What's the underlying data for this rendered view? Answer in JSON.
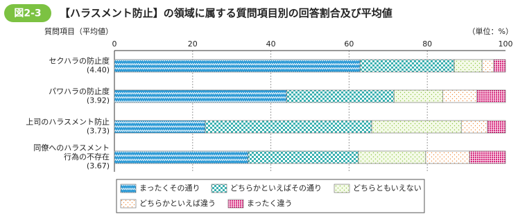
{
  "chart_data": {
    "type": "stacked-bar-horizontal",
    "figure_number": "図2-3",
    "title": "【ハラスメント防止】の領域に属する質問項目別の回答割合及び平均値",
    "y_axis_label": "質問項目（平均値）",
    "unit_label": "（単位：%）",
    "categories": [
      [
        "セクハラの防止度"
      ],
      [
        "パワハラの防止度"
      ],
      [
        "上司のハラスメント防止"
      ],
      [
        "同僚へのハラスメント",
        "行為の不存在"
      ]
    ],
    "averages": [
      "(4.40)",
      "(3.92)",
      "(3.73)",
      "(3.67)"
    ],
    "xlim": [
      0,
      100
    ],
    "xticks": [
      0,
      20,
      40,
      60,
      80,
      100
    ],
    "grid": true,
    "series": [
      {
        "name": "まったくその通り",
        "color": "#2e9bd6",
        "values": [
          62.8,
          44.0,
          23.2,
          34.2
        ]
      },
      {
        "name": "どちらかといえばその通り",
        "color": "#3ab0b0",
        "values": [
          24.1,
          27.5,
          42.6,
          28.2
        ]
      },
      {
        "name": "どちらともいえない",
        "color": "#8cc63f",
        "values": [
          7.1,
          12.5,
          22.9,
          17.2
        ]
      },
      {
        "name": "どちらかといえば違う",
        "color": "#f08c3c",
        "values": [
          3.0,
          8.7,
          6.7,
          11.2
        ]
      },
      {
        "name": "まったく違う",
        "color": "#d6237a",
        "values": [
          3.0,
          7.3,
          4.6,
          9.2
        ]
      }
    ]
  }
}
